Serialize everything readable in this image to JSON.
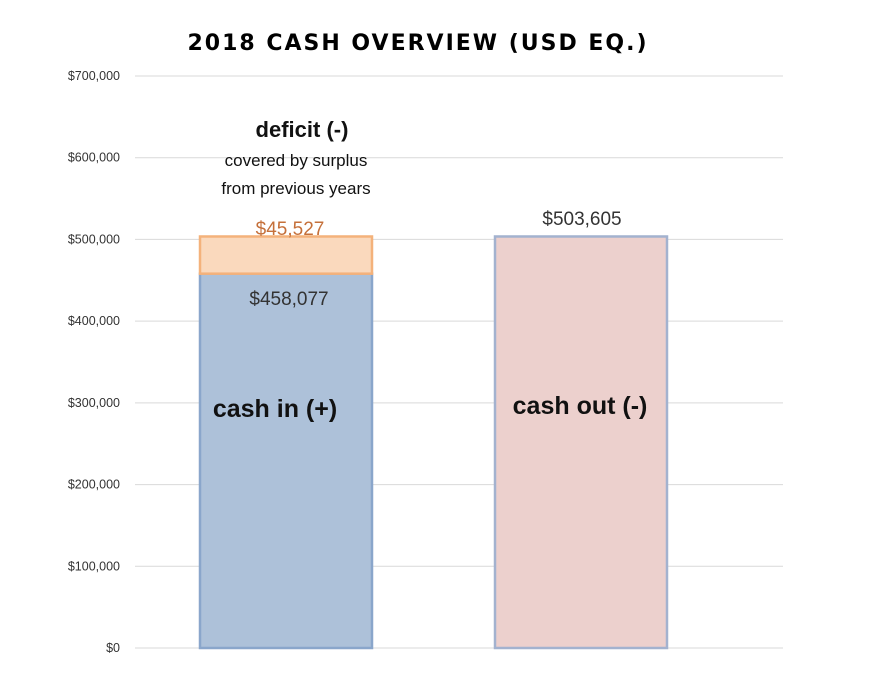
{
  "chart_data": {
    "type": "bar",
    "stacked": true,
    "title": "2018 CASH OVERVIEW (USD EQ.)",
    "categories": [
      "cash in (+)",
      "cash out (-)"
    ],
    "y_ticks": [
      "$0",
      "$100,000",
      "$200,000",
      "$300,000",
      "$400,000",
      "$500,000",
      "$600,000",
      "$700,000"
    ],
    "ylim": [
      0,
      700000
    ],
    "grid": true,
    "series": [
      {
        "name": "cash in (+)",
        "values": [
          458077,
          0
        ],
        "label": "$458,077",
        "color": "#adc1d9",
        "border": "#8aa6cb"
      },
      {
        "name": "deficit (-)",
        "values": [
          45527,
          0
        ],
        "label": "$45,527",
        "color": "#fad9bd",
        "border": "#f4b27b",
        "label_color": "#c5703a"
      },
      {
        "name": "cash out (-)",
        "values": [
          0,
          503605
        ],
        "label": "$503,605",
        "color": "#ecd0cd",
        "border": "#a3b2cf"
      }
    ],
    "annotation": {
      "title": "deficit (-)",
      "lines": [
        "covered by surplus",
        "from previous years"
      ]
    }
  }
}
